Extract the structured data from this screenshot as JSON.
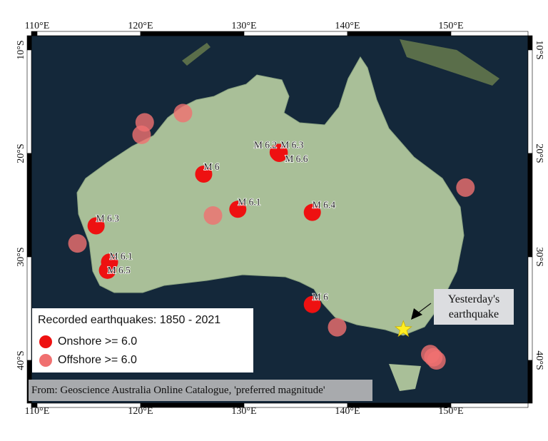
{
  "map": {
    "lon_ticks": [
      "110°E",
      "120°E",
      "130°E",
      "140°E",
      "150°E"
    ],
    "lat_ticks": [
      "10°S",
      "20°S",
      "30°S",
      "40°S"
    ],
    "lon_values": [
      110,
      120,
      130,
      140,
      150
    ],
    "lat_values": [
      -10,
      -20,
      -30,
      -40
    ],
    "colors": {
      "ocean": "#14283a",
      "land": "#a9bf98",
      "onshore": "#ee1111",
      "offshore": "#f07070",
      "star": "#ffee22"
    },
    "onshore": [
      {
        "lon": 126.1,
        "lat": -22.0,
        "label": "M 6"
      },
      {
        "lon": 133.3,
        "lat": -19.9,
        "label": "M 6.2"
      },
      {
        "lon": 133.4,
        "lat": -19.9,
        "label": "M 6.3"
      },
      {
        "lon": 133.4,
        "lat": -20.0,
        "label": "M 6.6"
      },
      {
        "lon": 129.4,
        "lat": -25.4,
        "label": "M 6.1"
      },
      {
        "lon": 136.6,
        "lat": -25.7,
        "label": "M 6.4"
      },
      {
        "lon": 115.7,
        "lat": -27.0,
        "label": "M 6.3"
      },
      {
        "lon": 117.0,
        "lat": -30.5,
        "label": "M 6.1"
      },
      {
        "lon": 116.8,
        "lat": -31.3,
        "label": "M 6.5"
      },
      {
        "lon": 136.6,
        "lat": -34.6,
        "label": "M 6"
      }
    ],
    "offshore": [
      {
        "lon": 120.4,
        "lat": -17.0
      },
      {
        "lon": 120.1,
        "lat": -18.2
      },
      {
        "lon": 124.1,
        "lat": -16.1
      },
      {
        "lon": 127.0,
        "lat": -26.0
      },
      {
        "lon": 113.9,
        "lat": -28.7
      },
      {
        "lon": 139.0,
        "lat": -36.8
      },
      {
        "lon": 151.4,
        "lat": -23.3
      },
      {
        "lon": 148.0,
        "lat": -39.4
      },
      {
        "lon": 148.6,
        "lat": -40.0
      },
      {
        "lon": 148.3,
        "lat": -39.7
      }
    ],
    "yesterday": {
      "lon": 145.4,
      "lat": -37.0
    }
  },
  "legend": {
    "title": "Recorded earthquakes: 1850 - 2021",
    "onshore": "Onshore >= 6.0",
    "offshore": "Offshore >= 6.0"
  },
  "annotation": "Yesterday's earthquake",
  "annotation_line1": "Yesterday's",
  "annotation_line2": "earthquake",
  "source": "From: Geoscience Australia Online Catalogue, 'preferred magnitude'"
}
